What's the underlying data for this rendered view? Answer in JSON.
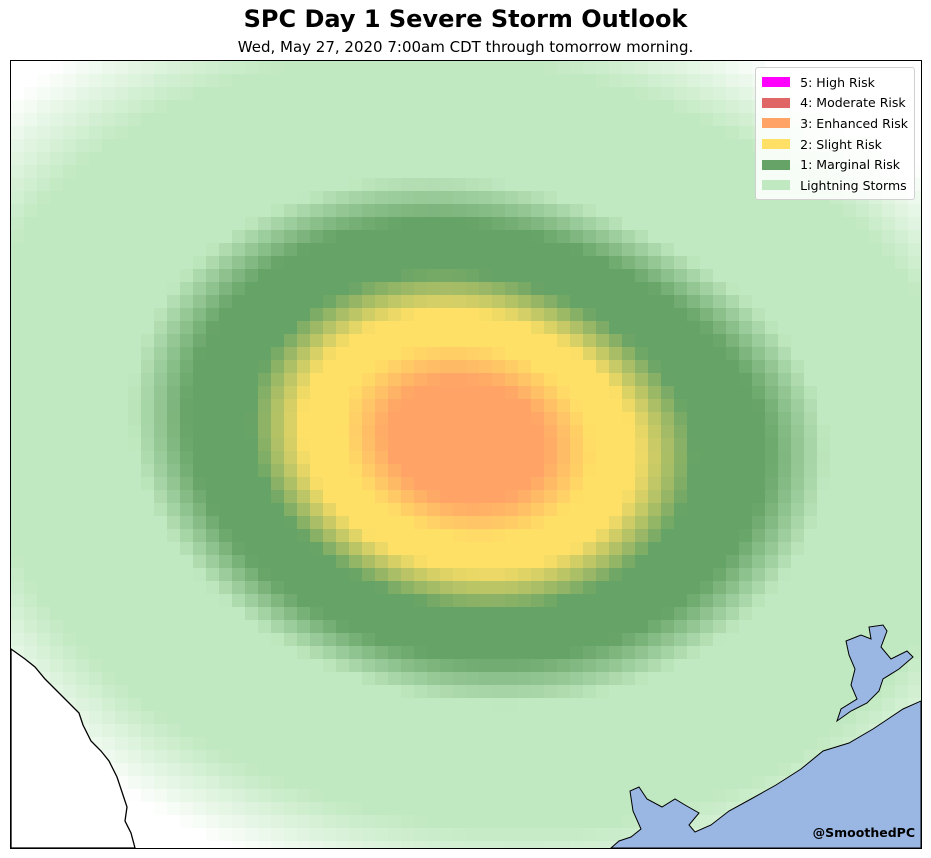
{
  "header": {
    "title": "SPC Day 1 Severe Storm Outlook",
    "subtitle": "Wed, May 27, 2020 7:00am CDT through tomorrow morning."
  },
  "legend": {
    "items": [
      {
        "label": "5: High Risk",
        "color": "#ff00ff",
        "level": 5
      },
      {
        "label": "4: Moderate Risk",
        "color": "#e06666",
        "level": 4
      },
      {
        "label": "3: Enhanced Risk",
        "color": "#ffa366",
        "level": 3
      },
      {
        "label": "2: Slight Risk",
        "color": "#ffe066",
        "level": 2
      },
      {
        "label": "1: Marginal Risk",
        "color": "#66a366",
        "level": 1
      },
      {
        "label": "Lightning Storms",
        "color": "#c1e9c1",
        "level": 0
      }
    ]
  },
  "map": {
    "region": "Texas",
    "water_color": "#9ab7e3",
    "land_color": "#ffffff",
    "border_color": "#000000"
  },
  "credit": "@SmoothedPC"
}
